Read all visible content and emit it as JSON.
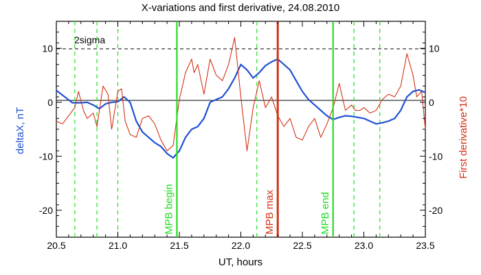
{
  "chart_data": {
    "type": "line",
    "title": "X-variations and first derivative, 24.08.2010",
    "xlabel": "UT, hours",
    "ylabel_left": "deltaX, nT",
    "ylabel_right": "First derivative*10",
    "xlim": [
      20.5,
      23.5
    ],
    "ylim": [
      -25,
      15
    ],
    "x_ticks": [
      "20.5",
      "21.0",
      "21.5",
      "22.0",
      "22.5",
      "23.0",
      "23.5"
    ],
    "y_ticks": [
      "10",
      "0",
      "-10",
      "-20"
    ],
    "y_tick_values": [
      10,
      0,
      -10,
      -20
    ],
    "x_tick_values": [
      20.5,
      21.0,
      21.5,
      22.0,
      22.5,
      23.0,
      23.5
    ],
    "sigma_label": "2sigma",
    "sigma_level": 9.3,
    "zero_level": 0,
    "colors": {
      "deltaX": "#1e50d2",
      "derivative": "#d23214",
      "mpb_bound": "#22dd22",
      "mpb_max": "#d23214",
      "dashed": "#22dd22",
      "axis": "#000000"
    },
    "vlines": [
      {
        "x": 21.48,
        "label": "MPB begin",
        "kind": "solid-green"
      },
      {
        "x": 22.3,
        "label": "MPB max",
        "kind": "solid-red"
      },
      {
        "x": 22.75,
        "label": "MPB end",
        "kind": "solid-green"
      }
    ],
    "dashed_vlines": [
      20.65,
      20.83,
      21.0,
      22.13,
      22.92,
      23.13
    ],
    "series": [
      {
        "name": "deltaX, nT",
        "x": [
          20.5,
          20.58,
          20.63,
          20.7,
          20.75,
          20.8,
          20.85,
          20.9,
          20.95,
          21.0,
          21.05,
          21.1,
          21.15,
          21.2,
          21.25,
          21.3,
          21.35,
          21.4,
          21.45,
          21.5,
          21.55,
          21.6,
          21.65,
          21.7,
          21.75,
          21.8,
          21.85,
          21.9,
          21.95,
          22.0,
          22.05,
          22.1,
          22.15,
          22.2,
          22.25,
          22.3,
          22.35,
          22.4,
          22.45,
          22.5,
          22.55,
          22.6,
          22.65,
          22.7,
          22.75,
          22.8,
          22.85,
          22.9,
          22.95,
          23.0,
          23.05,
          23.1,
          23.15,
          23.2,
          23.25,
          23.3,
          23.35,
          23.4,
          23.45,
          23.5
        ],
        "values": [
          2.2,
          0.8,
          -0.1,
          -0.1,
          0.0,
          -0.5,
          -1.2,
          -0.3,
          0.0,
          0.1,
          1.0,
          0.0,
          -3.5,
          -5.5,
          -6.5,
          -7.5,
          -8.2,
          -9.5,
          -10.3,
          -9.0,
          -6.5,
          -5.0,
          -4.5,
          -3.0,
          0.0,
          0.5,
          1.0,
          2.5,
          4.5,
          7.0,
          6.0,
          4.5,
          5.5,
          6.8,
          7.5,
          8.0,
          7.0,
          6.0,
          4.0,
          2.0,
          0.5,
          -0.5,
          -1.5,
          -2.5,
          -3.2,
          -2.8,
          -2.5,
          -2.6,
          -2.8,
          -3.0,
          -3.5,
          -4.0,
          -3.8,
          -3.5,
          -3.0,
          -1.5,
          1.0,
          2.0,
          2.3,
          1.8
        ]
      },
      {
        "name": "First derivative*10",
        "x": [
          20.5,
          20.55,
          20.6,
          20.65,
          20.68,
          20.72,
          20.75,
          20.8,
          20.83,
          20.88,
          20.92,
          20.95,
          21.0,
          21.03,
          21.06,
          21.1,
          21.15,
          21.2,
          21.25,
          21.3,
          21.35,
          21.4,
          21.45,
          21.5,
          21.55,
          21.6,
          21.62,
          21.65,
          21.7,
          21.75,
          21.8,
          21.85,
          21.9,
          21.95,
          22.0,
          22.05,
          22.1,
          22.15,
          22.2,
          22.25,
          22.3,
          22.35,
          22.4,
          22.45,
          22.5,
          22.55,
          22.6,
          22.65,
          22.7,
          22.75,
          22.8,
          22.85,
          22.9,
          22.93,
          22.97,
          23.0,
          23.05,
          23.1,
          23.15,
          23.2,
          23.25,
          23.3,
          23.35,
          23.4,
          23.43,
          23.47,
          23.5
        ],
        "values": [
          -3.5,
          -4.0,
          -2.5,
          -1.0,
          2.0,
          -1.5,
          -3.0,
          -2.0,
          -4.5,
          3.0,
          1.5,
          -5.0,
          2.0,
          2.5,
          -3.5,
          -6.0,
          -6.5,
          -3.0,
          -2.5,
          -4.0,
          -7.0,
          -9.0,
          -8.0,
          0.5,
          5.5,
          8.0,
          5.5,
          7.0,
          1.5,
          8.0,
          5.0,
          4.0,
          7.0,
          12.0,
          1.0,
          -9.0,
          -1.0,
          4.0,
          -1.0,
          1.0,
          -2.5,
          -4.5,
          -3.0,
          -6.5,
          -7.0,
          -4.5,
          -3.0,
          -6.5,
          -4.0,
          -1.0,
          3.5,
          -1.5,
          -0.5,
          -1.5,
          -1.5,
          -1.0,
          -2.0,
          -1.5,
          0.5,
          1.5,
          1.0,
          3.0,
          9.0,
          5.0,
          1.0,
          2.0,
          -5.0
        ]
      }
    ]
  }
}
